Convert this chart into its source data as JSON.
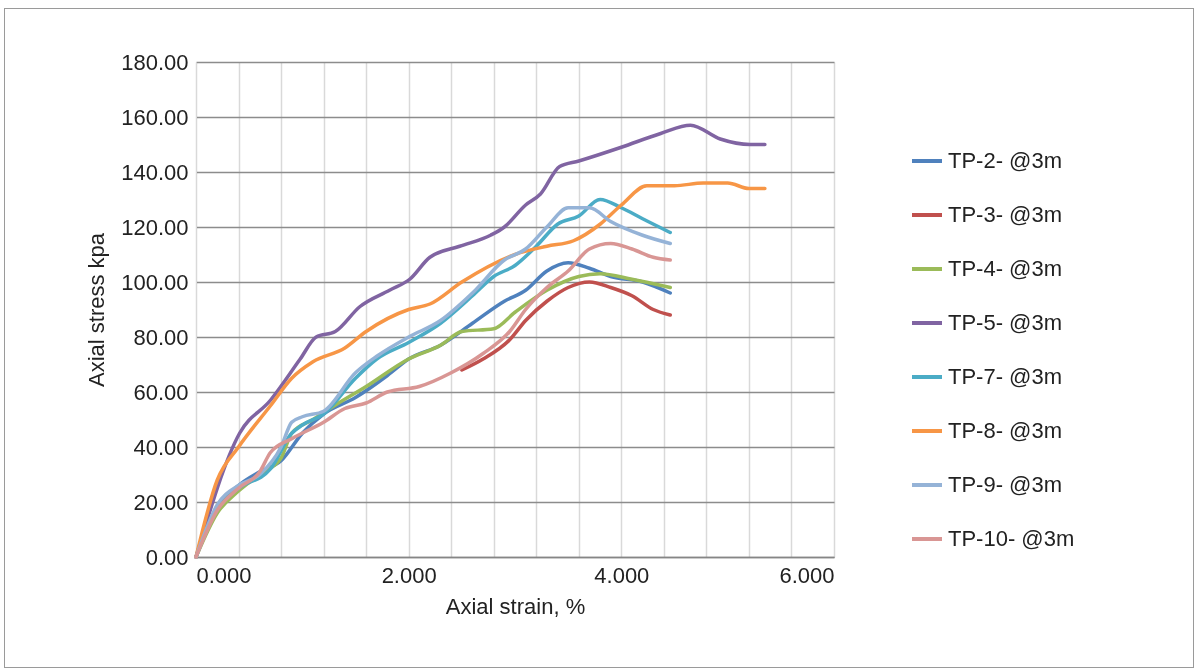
{
  "chart_data": {
    "type": "line",
    "xlabel": "Axial strain, %",
    "ylabel": "Axial stress kpa",
    "xlim": [
      0,
      6
    ],
    "xticks": [
      {
        "value": 0,
        "label": "0.000"
      },
      {
        "value": 0.4,
        "label": null
      },
      {
        "value": 0.8,
        "label": null
      },
      {
        "value": 1.2,
        "label": null
      },
      {
        "value": 1.6,
        "label": null
      },
      {
        "value": 2,
        "label": "2.000"
      },
      {
        "value": 2.4,
        "label": null
      },
      {
        "value": 2.8,
        "label": null
      },
      {
        "value": 3.2,
        "label": null
      },
      {
        "value": 3.6,
        "label": null
      },
      {
        "value": 4,
        "label": "4.000"
      },
      {
        "value": 4.4,
        "label": null
      },
      {
        "value": 4.8,
        "label": null
      },
      {
        "value": 5.2,
        "label": null
      },
      {
        "value": 5.6,
        "label": null
      },
      {
        "value": 6,
        "label": "6.000"
      }
    ],
    "ylim": [
      0,
      180
    ],
    "yticks": [
      {
        "value": 0,
        "label": "0.00"
      },
      {
        "value": 20,
        "label": "20.00"
      },
      {
        "value": 40,
        "label": "40.00"
      },
      {
        "value": 60,
        "label": "60.00"
      },
      {
        "value": 80,
        "label": "80.00"
      },
      {
        "value": 100,
        "label": "100.00"
      },
      {
        "value": 120,
        "label": "120.00"
      },
      {
        "value": 140,
        "label": "140.00"
      },
      {
        "value": 160,
        "label": "160.00"
      },
      {
        "value": 180,
        "label": "180.00"
      }
    ],
    "grid": true,
    "legend": "right",
    "marker": "none",
    "line_style": "solid",
    "series": [
      {
        "name": "TP-2- @3m",
        "color": "#4f81bd",
        "x": [
          0,
          0.2,
          0.4,
          0.6,
          0.8,
          1.0,
          1.2,
          1.5,
          1.8,
          2.0,
          2.3,
          2.6,
          2.9,
          3.1,
          3.3,
          3.5,
          3.7,
          3.9,
          4.2,
          4.46
        ],
        "values": [
          0,
          18,
          26,
          31,
          35,
          45,
          52,
          58,
          66,
          72,
          77,
          85,
          93,
          97,
          104,
          107,
          105,
          102,
          100,
          96
        ]
      },
      {
        "name": "TP-3- @3m",
        "color": "#c0504d",
        "x": [
          2.5,
          2.7,
          2.95,
          3.1,
          3.3,
          3.5,
          3.7,
          3.9,
          4.1,
          4.3,
          4.46
        ],
        "values": [
          68,
          72,
          79,
          86,
          93,
          98,
          100,
          98,
          95,
          90,
          88
        ]
      },
      {
        "name": "TP-4- @3m",
        "color": "#9bbb59",
        "x": [
          0,
          0.2,
          0.4,
          0.6,
          0.8,
          0.9,
          1.1,
          1.3,
          1.6,
          2.0,
          2.3,
          2.5,
          2.8,
          3.0,
          3.3,
          3.6,
          3.8,
          4.1,
          4.46
        ],
        "values": [
          0,
          16,
          24,
          30,
          36,
          45,
          50,
          55,
          62,
          72,
          77,
          82,
          83,
          89,
          97,
          102,
          103,
          101,
          98
        ]
      },
      {
        "name": "TP-5- @3m",
        "color": "#8064a2",
        "x": [
          0,
          0.41,
          0.7,
          0.98,
          1.13,
          1.31,
          1.54,
          1.82,
          2.01,
          2.2,
          2.48,
          2.77,
          2.9,
          3.1,
          3.24,
          3.42,
          3.6,
          4.0,
          4.37,
          4.65,
          4.93,
          5.21,
          5.35
        ],
        "values": [
          0,
          45,
          57,
          72,
          80,
          82,
          91,
          97,
          101,
          109,
          113,
          117,
          120,
          128,
          132,
          142,
          144,
          149,
          154,
          157,
          152,
          150,
          150
        ]
      },
      {
        "name": "TP-7- @3m",
        "color": "#4bacc6",
        "x": [
          0,
          0.2,
          0.4,
          0.7,
          0.9,
          1.0,
          1.2,
          1.5,
          1.7,
          2.0,
          2.3,
          2.6,
          2.8,
          3.0,
          3.2,
          3.4,
          3.6,
          3.8,
          4.0,
          4.2,
          4.46
        ],
        "values": [
          0,
          18,
          25,
          32,
          45,
          48,
          52,
          65,
          72,
          78,
          85,
          95,
          102,
          106,
          113,
          121,
          124,
          130,
          127,
          123,
          118
        ]
      },
      {
        "name": "TP-8- @3m",
        "color": "#f79646",
        "x": [
          0,
          0.2,
          0.4,
          0.7,
          0.9,
          1.1,
          1.4,
          1.6,
          2.0,
          2.2,
          2.5,
          3.0,
          3.3,
          3.55,
          3.8,
          4.0,
          4.24,
          4.5,
          4.77,
          5.0,
          5.2,
          5.35
        ],
        "values": [
          0,
          28,
          40,
          55,
          65,
          71,
          76,
          82,
          90,
          92,
          100,
          110,
          113,
          115,
          121,
          128,
          135,
          135,
          136,
          136,
          134,
          134
        ]
      },
      {
        "name": "TP-9- @3m",
        "color": "#95b3d7",
        "x": [
          0,
          0.2,
          0.4,
          0.6,
          0.8,
          0.9,
          1.0,
          1.2,
          1.5,
          1.7,
          2.0,
          2.3,
          2.6,
          2.9,
          3.1,
          3.3,
          3.5,
          3.7,
          3.9,
          4.2,
          4.46
        ],
        "values": [
          0,
          19,
          26,
          30,
          40,
          49,
          51,
          53,
          67,
          73,
          80,
          86,
          96,
          108,
          112,
          120,
          127,
          127,
          122,
          117,
          114
        ]
      },
      {
        "name": "TP-10- @3m",
        "color": "#d99694",
        "x": [
          0,
          0.2,
          0.4,
          0.6,
          0.7,
          0.9,
          1.2,
          1.4,
          1.6,
          1.8,
          2.1,
          2.4,
          2.7,
          2.95,
          3.1,
          3.3,
          3.5,
          3.7,
          3.9,
          4.1,
          4.3,
          4.46
        ],
        "values": [
          0,
          17,
          25,
          31,
          38,
          43,
          49,
          54,
          56,
          60,
          62,
          67,
          74,
          82,
          90,
          98,
          104,
          112,
          114,
          112,
          109,
          108
        ]
      }
    ]
  }
}
